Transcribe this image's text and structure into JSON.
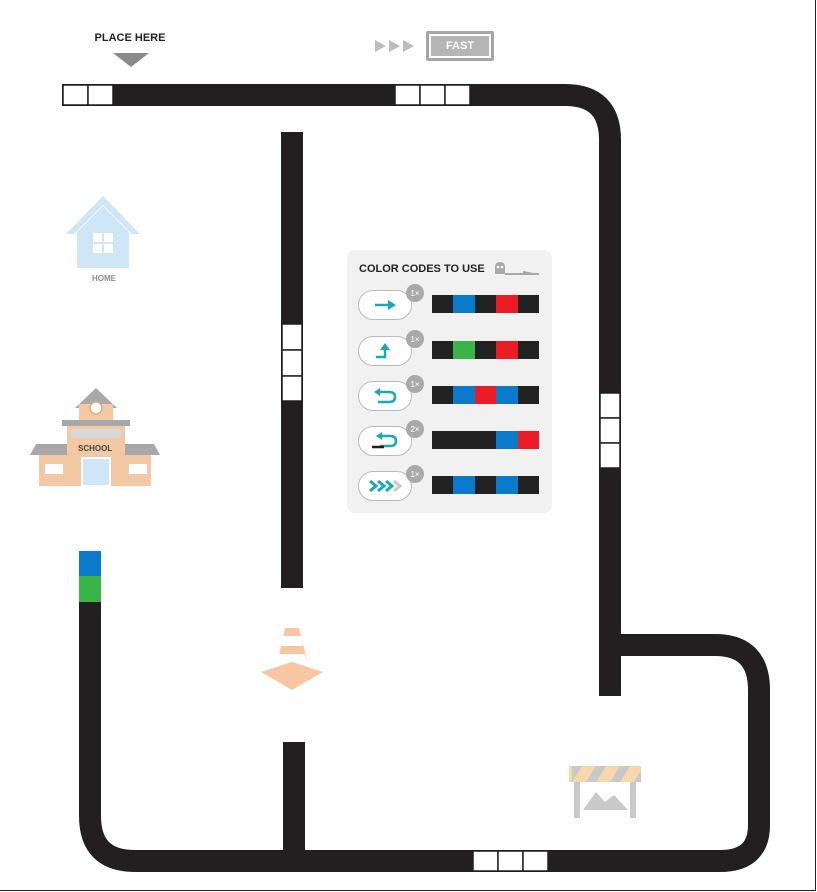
{
  "top": {
    "place_label": "PLACE HERE",
    "fast_label": "FAST"
  },
  "places": {
    "home_label": "HOME",
    "school_label": "SCHOOL"
  },
  "legend": {
    "title": "COLOR CODES TO USE",
    "rows": [
      {
        "icon": "arrow-right-icon",
        "count": "1×",
        "colors": [
          "#222222",
          "#0a7acb",
          "#222222",
          "#ec1c24",
          "#222222"
        ]
      },
      {
        "icon": "turn-right-icon",
        "count": "1×",
        "colors": [
          "#222222",
          "#3bb44a",
          "#222222",
          "#ec1c24",
          "#222222"
        ]
      },
      {
        "icon": "u-turn-icon",
        "count": "1×",
        "colors": [
          "#222222",
          "#0a7acb",
          "#ec1c24",
          "#0a7acb",
          "#222222"
        ]
      },
      {
        "icon": "line-end-u-turn-icon",
        "count": "2×",
        "colors": [
          "#222222",
          "#222222",
          "#222222",
          "#0a7acb",
          "#ec1c24"
        ]
      },
      {
        "icon": "turbo-icon",
        "count": "1×",
        "colors": [
          "#222222",
          "#0a7acb",
          "#222222",
          "#0a7acb",
          "#222222"
        ]
      }
    ]
  },
  "colors": {
    "line": "#231f20",
    "blue": "#0a7acb",
    "green": "#3bb44a",
    "red": "#ec1c24",
    "teal": "#1ba9b5",
    "cone": "#f7c7a3",
    "house": "#cfe6f6"
  }
}
